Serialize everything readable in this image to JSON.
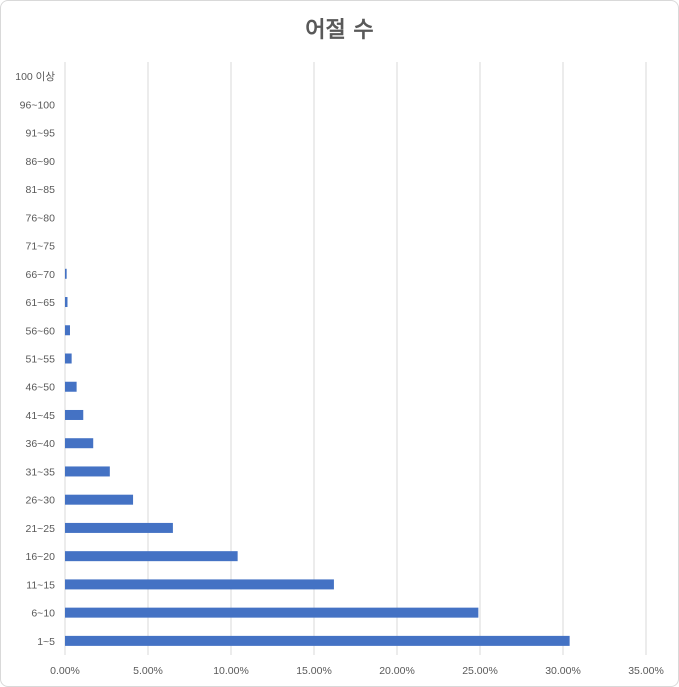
{
  "chart_data": {
    "type": "bar",
    "orientation": "horizontal",
    "title": "어절 수",
    "categories": [
      "1~5",
      "6~10",
      "11~15",
      "16~20",
      "21~25",
      "26~30",
      "31~35",
      "36~40",
      "41~45",
      "46~50",
      "51~55",
      "56~60",
      "61~65",
      "66~70",
      "71~75",
      "76~80",
      "81~85",
      "86~90",
      "91~95",
      "96~100",
      "100 이상"
    ],
    "values": [
      30.4,
      24.9,
      16.2,
      10.4,
      6.5,
      4.1,
      2.7,
      1.7,
      1.1,
      0.7,
      0.4,
      0.3,
      0.15,
      0.1,
      0,
      0,
      0,
      0,
      0,
      0,
      0
    ],
    "xlim": [
      0,
      35
    ],
    "x_ticks": [
      "0.00%",
      "5.00%",
      "10.00%",
      "15.00%",
      "20.00%",
      "25.00%",
      "30.00%",
      "35.00%"
    ],
    "grid": "vertical",
    "legend": "none",
    "bar_color": "#4472c4"
  }
}
